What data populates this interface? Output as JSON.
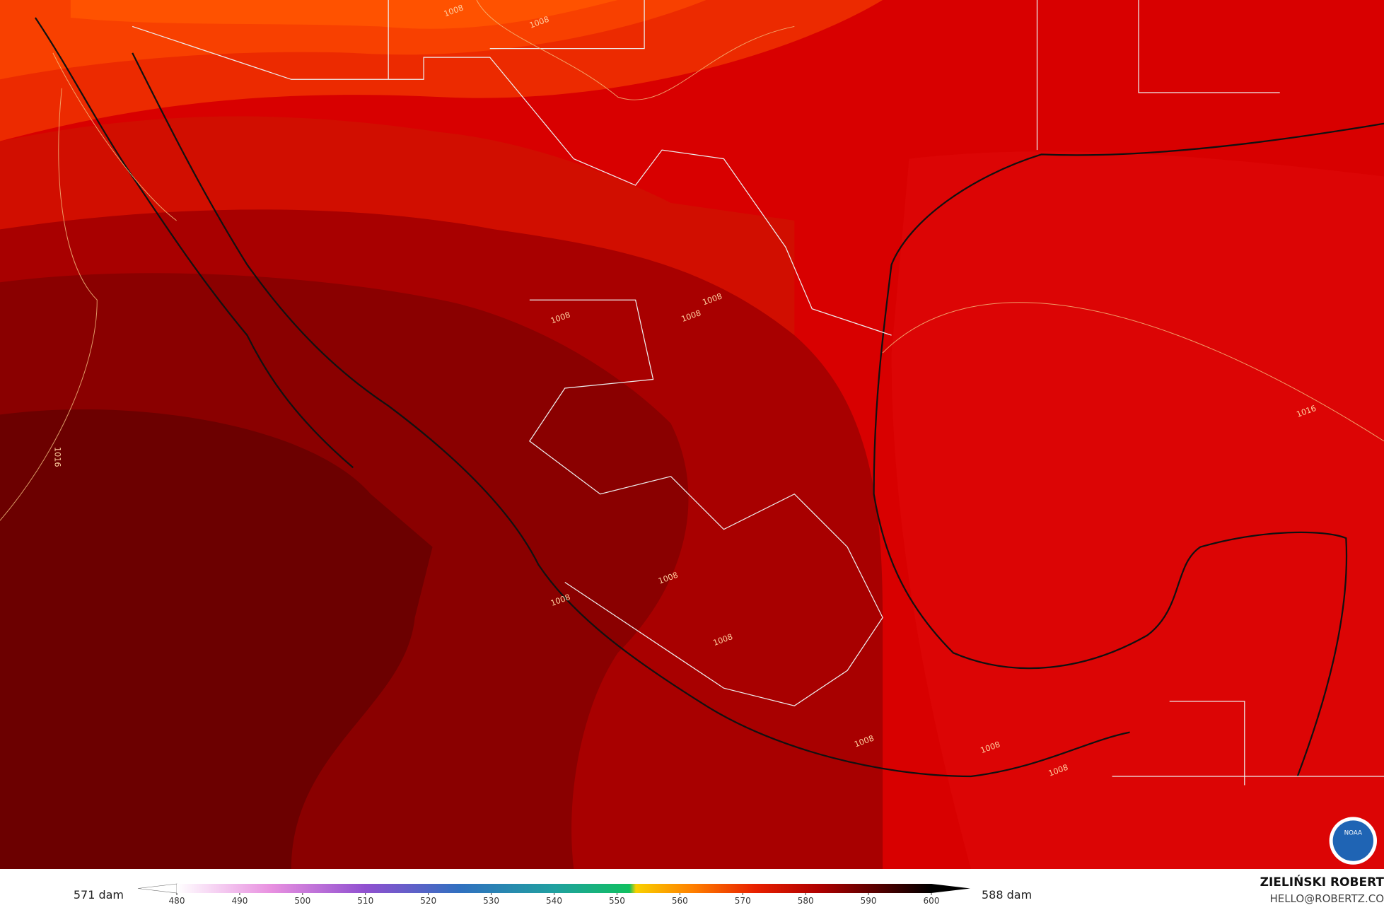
{
  "map": {
    "contour_labels": [
      "1008",
      "1008",
      "1008",
      "1008",
      "1008",
      "1008",
      "1008",
      "1008",
      "1008",
      "1008",
      "1008",
      "1016",
      "1016"
    ],
    "logo_text": "NOAA"
  },
  "colorbar": {
    "range": [
      480,
      600
    ],
    "ticks": [
      480,
      490,
      500,
      510,
      520,
      530,
      540,
      550,
      560,
      570,
      580,
      590,
      600
    ],
    "stops": [
      {
        "value": 480,
        "color": "#ffffff"
      },
      {
        "value": 495,
        "color": "#e890e0"
      },
      {
        "value": 510,
        "color": "#9050d0"
      },
      {
        "value": 525,
        "color": "#3070c0"
      },
      {
        "value": 540,
        "color": "#20a0a0"
      },
      {
        "value": 552,
        "color": "#10c060"
      },
      {
        "value": 553,
        "color": "#f8d000"
      },
      {
        "value": 562,
        "color": "#ff8000"
      },
      {
        "value": 572,
        "color": "#e82000"
      },
      {
        "value": 582,
        "color": "#b00000"
      },
      {
        "value": 592,
        "color": "#500000"
      },
      {
        "value": 600,
        "color": "#000000"
      }
    ],
    "min_label": "571 dam",
    "max_label": "588 dam"
  },
  "credit": {
    "name": "ZIELIŃSKI ROBERT",
    "email": "HELLO@ROBERTZ.CO"
  }
}
